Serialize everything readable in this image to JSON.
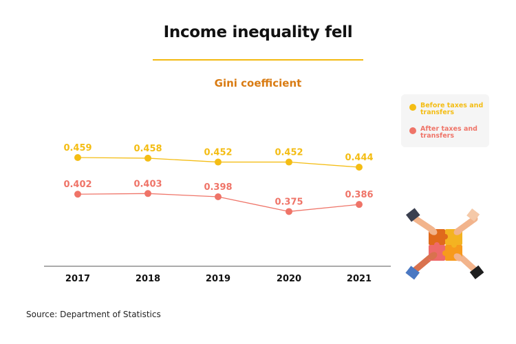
{
  "title": "Income inequality fell",
  "subtitle": "Gini coefficient",
  "source": "Source: Department of Statistics",
  "colors": {
    "accent": "#f2b90f",
    "subtitle": "#d97b12",
    "before": "#f4bd14",
    "after": "#ef7468"
  },
  "legend": {
    "before": "Before taxes and transfers",
    "after": "After taxes and transfers"
  },
  "chart_data": {
    "type": "line",
    "categories": [
      "2017",
      "2018",
      "2019",
      "2020",
      "2021"
    ],
    "series": [
      {
        "name": "Before taxes and transfers",
        "color": "#f4bd14",
        "values": [
          0.459,
          0.458,
          0.452,
          0.452,
          0.444
        ]
      },
      {
        "name": "After taxes and transfers",
        "color": "#ef7468",
        "values": [
          0.402,
          0.403,
          0.398,
          0.375,
          0.386
        ]
      }
    ],
    "title": "Gini coefficient",
    "xlabel": "",
    "ylabel": "",
    "data_labels": true,
    "grid": false,
    "legend_position": "top-right"
  },
  "decorations": {
    "illustration": "hands-holding-puzzle-pieces-icon"
  }
}
